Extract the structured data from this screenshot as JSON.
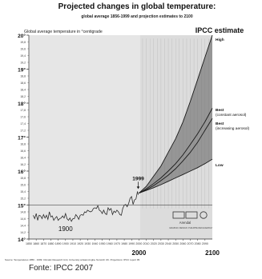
{
  "chart_data": {
    "type": "line",
    "title": "Projected changes in global temperature:",
    "subtitle": "global average 1856-1999 and projection estimates to 2100",
    "ylabel": "Global average temperature in °centigrade",
    "panel_label": "IPCC estimate",
    "xlim": [
      1850,
      2100
    ],
    "ylim": [
      14,
      20
    ],
    "x_ticks_small": [
      1850,
      1860,
      1870,
      1880,
      1890,
      1900,
      1910,
      1920,
      1930,
      1940,
      1950,
      1960,
      1970,
      1980,
      1990,
      2000,
      2010,
      2020,
      2030,
      2040,
      2050,
      2060,
      2070,
      2080,
      2090
    ],
    "x_labels_big": [
      {
        "x": 1900,
        "label": "1900"
      },
      {
        "x": 2000,
        "label": "2000"
      },
      {
        "x": 2100,
        "label": "2100"
      }
    ],
    "y_major_labels": [
      "14°",
      "15°",
      "16°",
      "17°",
      "18°",
      "19°",
      "20°"
    ],
    "y_minor_labels": [
      "14,2",
      "14,4",
      "14,6",
      "14,8",
      "15,2",
      "15,4",
      "15,6",
      "15,8",
      "16,2",
      "16,4",
      "16,6",
      "16,8",
      "17,2",
      "17,4",
      "17,6",
      "17,8",
      "18,2",
      "18,4",
      "18,6",
      "18,8",
      "19,2",
      "19,4",
      "19,6",
      "19,8"
    ],
    "reference_line_y": 15.0,
    "annotation_1999": {
      "x": 1999,
      "y": 15.45,
      "label": "1999"
    },
    "historical": {
      "name": "observed 1856-1999",
      "x": [
        1856,
        1858,
        1860,
        1862,
        1864,
        1866,
        1868,
        1870,
        1872,
        1874,
        1876,
        1878,
        1880,
        1882,
        1884,
        1886,
        1888,
        1890,
        1892,
        1894,
        1896,
        1898,
        1900,
        1902,
        1904,
        1906,
        1908,
        1910,
        1912,
        1914,
        1916,
        1918,
        1920,
        1922,
        1924,
        1926,
        1928,
        1930,
        1932,
        1934,
        1936,
        1938,
        1940,
        1942,
        1944,
        1946,
        1948,
        1950,
        1952,
        1954,
        1956,
        1958,
        1960,
        1962,
        1964,
        1966,
        1968,
        1970,
        1972,
        1974,
        1976,
        1978,
        1980,
        1982,
        1984,
        1986,
        1988,
        1990,
        1992,
        1994,
        1996,
        1998,
        1999
      ],
      "y": [
        14.7,
        14.6,
        14.75,
        14.55,
        14.7,
        14.68,
        14.6,
        14.72,
        14.62,
        14.7,
        14.58,
        14.8,
        14.65,
        14.68,
        14.55,
        14.62,
        14.66,
        14.55,
        14.6,
        14.62,
        14.68,
        14.62,
        14.75,
        14.6,
        14.55,
        14.62,
        14.52,
        14.6,
        14.6,
        14.72,
        14.66,
        14.58,
        14.7,
        14.72,
        14.7,
        14.8,
        14.78,
        14.85,
        14.82,
        14.8,
        14.82,
        14.9,
        14.92,
        14.9,
        14.98,
        14.85,
        14.82,
        14.75,
        14.85,
        14.75,
        14.72,
        14.92,
        14.85,
        14.9,
        14.72,
        14.82,
        14.78,
        14.85,
        14.8,
        14.72,
        14.7,
        14.9,
        15.0,
        15.02,
        14.95,
        15.05,
        15.2,
        15.25,
        15.02,
        15.15,
        15.18,
        15.4,
        15.3
      ]
    },
    "series": [
      {
        "name": "High",
        "x": [
          2000,
          2010,
          2020,
          2030,
          2040,
          2050,
          2060,
          2070,
          2080,
          2090,
          2100
        ],
        "y": [
          15.35,
          15.55,
          15.85,
          16.15,
          16.55,
          16.95,
          17.45,
          18.05,
          18.7,
          19.35,
          20.0
        ]
      },
      {
        "name": "Best (constant aerosol)",
        "x": [
          2000,
          2010,
          2020,
          2030,
          2040,
          2050,
          2060,
          2070,
          2080,
          2090,
          2100
        ],
        "y": [
          15.35,
          15.48,
          15.63,
          15.8,
          16.0,
          16.22,
          16.48,
          16.78,
          17.1,
          17.45,
          17.85
        ]
      },
      {
        "name": "Best (increasing aerosol)",
        "x": [
          2000,
          2010,
          2020,
          2030,
          2040,
          2050,
          2060,
          2070,
          2080,
          2090,
          2100
        ],
        "y": [
          15.35,
          15.45,
          15.57,
          15.72,
          15.88,
          16.07,
          16.3,
          16.55,
          16.85,
          17.2,
          17.55
        ]
      },
      {
        "name": "Low",
        "x": [
          2000,
          2010,
          2020,
          2030,
          2040,
          2050,
          2060,
          2070,
          2080,
          2090,
          2100
        ],
        "y": [
          15.35,
          15.43,
          15.51,
          15.6,
          15.7,
          15.8,
          15.9,
          16.0,
          16.1,
          16.22,
          16.35
        ]
      }
    ],
    "legend": {
      "high": "High",
      "best_constant_1": "Best",
      "best_constant_2": "(constant aerosol)",
      "best_increasing_1": "Best",
      "best_increasing_2": "(increasing aerosol)",
      "low": "Low"
    },
    "grid": false
  },
  "logos": {
    "text": "Arendal",
    "caption": "GRAPHIC DESIGN: PHILIPPE REKACEWICZ"
  },
  "source_note": "Source: Temperatures 1856 - 1999: Climatic Research Unit, University at East Anglia, Norwich UK. Projections: IPCC report 95.",
  "caption": "Fonte: IPCC 2007",
  "colors": {
    "fan": "#8a8a8a",
    "plot_bg": "#e2e2e2",
    "line": "#2a2a2a"
  }
}
